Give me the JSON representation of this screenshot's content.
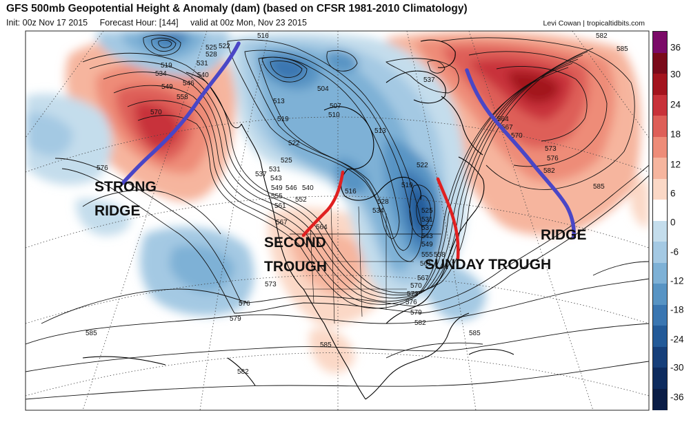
{
  "header": {
    "title": "GFS 500mb Geopotential Height & Anomaly (dam) (based on CFSR 1981-2010 Climatology)",
    "init": "Init: 00z Nov 17 2015",
    "forecast_hour": "Forecast Hour: [144]",
    "valid": "valid at 00z Mon, Nov 23 2015",
    "credit": "Levi Cowan | tropicaltidbits.com"
  },
  "annotations": {
    "strong_ridge_1": "STRONG",
    "strong_ridge_2": "RIDGE",
    "second_trough_1": "SECOND",
    "second_trough_2": "TROUGH",
    "sunday_trough": "SUNDAY TROUGH",
    "ridge": "RIDGE"
  },
  "contour_labels": [
    {
      "text": "516"
    },
    {
      "text": "522"
    },
    {
      "text": "525"
    },
    {
      "text": "528"
    },
    {
      "text": "531"
    },
    {
      "text": "519"
    },
    {
      "text": "534"
    },
    {
      "text": "540"
    },
    {
      "text": "549"
    },
    {
      "text": "546"
    },
    {
      "text": "558"
    },
    {
      "text": "570"
    },
    {
      "text": "576"
    },
    {
      "text": "513"
    },
    {
      "text": "519"
    },
    {
      "text": "504"
    },
    {
      "text": "507"
    },
    {
      "text": "510"
    },
    {
      "text": "513"
    },
    {
      "text": "522"
    },
    {
      "text": "525"
    },
    {
      "text": "531"
    },
    {
      "text": "537"
    },
    {
      "text": "543"
    },
    {
      "text": "549"
    },
    {
      "text": "546"
    },
    {
      "text": "540"
    },
    {
      "text": "555"
    },
    {
      "text": "552"
    },
    {
      "text": "561"
    },
    {
      "text": "567"
    },
    {
      "text": "564"
    },
    {
      "text": "516"
    },
    {
      "text": "528"
    },
    {
      "text": "534"
    },
    {
      "text": "522"
    },
    {
      "text": "519"
    },
    {
      "text": "525"
    },
    {
      "text": "531"
    },
    {
      "text": "537"
    },
    {
      "text": "543"
    },
    {
      "text": "549"
    },
    {
      "text": "555"
    },
    {
      "text": "558"
    },
    {
      "text": "561"
    },
    {
      "text": "567"
    },
    {
      "text": "570"
    },
    {
      "text": "573"
    },
    {
      "text": "576"
    },
    {
      "text": "579"
    },
    {
      "text": "582"
    },
    {
      "text": "573"
    },
    {
      "text": "576"
    },
    {
      "text": "579"
    },
    {
      "text": "585"
    },
    {
      "text": "585"
    },
    {
      "text": "582"
    },
    {
      "text": "585"
    },
    {
      "text": "537"
    },
    {
      "text": "564"
    },
    {
      "text": "567"
    },
    {
      "text": "570"
    },
    {
      "text": "573"
    },
    {
      "text": "576"
    },
    {
      "text": "582"
    },
    {
      "text": "585"
    },
    {
      "text": "582"
    },
    {
      "text": "585"
    }
  ],
  "colorbar": {
    "labels": [
      "36",
      "30",
      "24",
      "18",
      "12",
      "6",
      "0",
      "-6",
      "-12",
      "-18",
      "-24",
      "-30",
      "-36"
    ],
    "colors": [
      "#7b0a68",
      "#7a0a1a",
      "#a3141e",
      "#c8323a",
      "#de5f58",
      "#ee8c78",
      "#f6b59e",
      "#fbd8c6",
      "#ffffff",
      "#c4ddec",
      "#a4c9e3",
      "#7eb1d6",
      "#5894c4",
      "#3a76b1",
      "#235a98",
      "#163f7a",
      "#0d2b5e",
      "#0a1d46"
    ]
  }
}
